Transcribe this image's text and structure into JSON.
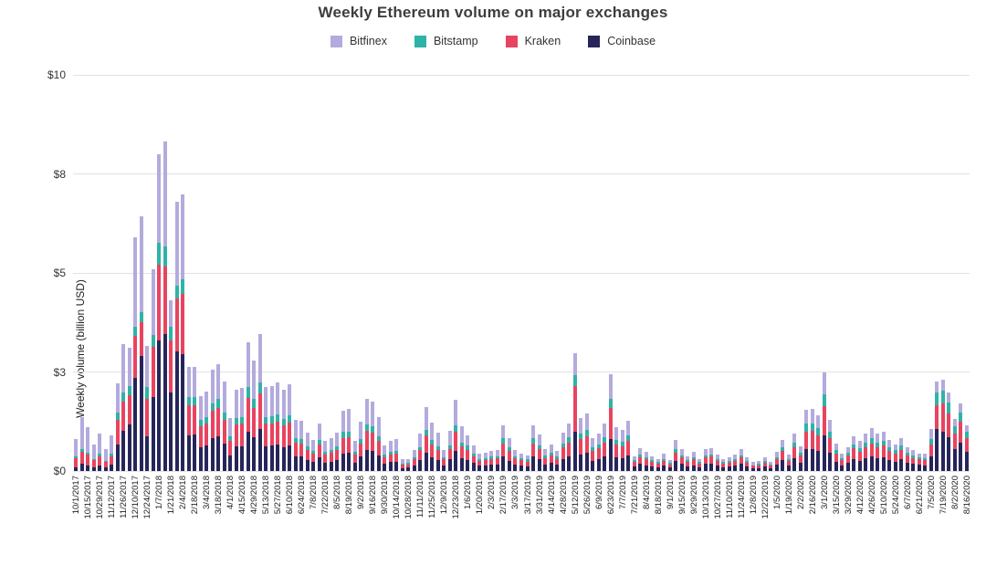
{
  "title": "Weekly Ethereum volume on major exchanges",
  "y_axis": {
    "title": "Weekly volume (billion USD)",
    "ticks": [
      {
        "label": "$10",
        "value": 10
      },
      {
        "label": "$8",
        "value": 7.5
      },
      {
        "label": "$5",
        "value": 5
      },
      {
        "label": "$3",
        "value": 2.5
      },
      {
        "label": "$0",
        "value": 0
      }
    ],
    "max": 10
  },
  "legend": [
    {
      "name": "Bitfinex",
      "color": "#b3abdd"
    },
    {
      "name": "Bitstamp",
      "color": "#2fb3a7"
    },
    {
      "name": "Kraken",
      "color": "#e8445f"
    },
    {
      "name": "Coinbase",
      "color": "#26255a"
    }
  ],
  "chart_data": {
    "type": "bar",
    "stacked": true,
    "title": "Weekly Ethereum volume on major exchanges",
    "xlabel": "",
    "ylabel": "Weekly volume (billion USD)",
    "ylim": [
      0,
      10
    ],
    "grid": true,
    "legend_position": "top",
    "x_tick_every": 2,
    "stack_order_bottom_to_top": [
      "Coinbase",
      "Kraken",
      "Bitstamp",
      "Bitfinex"
    ],
    "categories": [
      "10/1/2017",
      "10/8/2017",
      "10/15/2017",
      "10/22/2017",
      "10/29/2017",
      "11/5/2017",
      "11/12/2017",
      "11/19/2017",
      "11/26/2017",
      "12/3/2017",
      "12/10/2017",
      "12/17/2017",
      "12/24/2017",
      "12/31/2017",
      "1/7/2018",
      "1/14/2018",
      "1/21/2018",
      "1/28/2018",
      "2/4/2018",
      "2/11/2018",
      "2/18/2018",
      "2/25/2018",
      "3/4/2018",
      "3/11/2018",
      "3/18/2018",
      "3/25/2018",
      "4/1/2018",
      "4/8/2018",
      "4/15/2018",
      "4/22/2018",
      "4/29/2018",
      "5/6/2018",
      "5/13/2018",
      "5/20/2018",
      "5/27/2018",
      "6/3/2018",
      "6/10/2018",
      "6/17/2018",
      "6/24/2018",
      "7/1/2018",
      "7/8/2018",
      "7/15/2018",
      "7/22/2018",
      "7/29/2018",
      "8/5/2018",
      "8/12/2018",
      "8/19/2018",
      "8/26/2018",
      "9/2/2018",
      "9/9/2018",
      "9/16/2018",
      "9/23/2018",
      "9/30/2018",
      "10/7/2018",
      "10/14/2018",
      "10/21/2018",
      "10/28/2018",
      "11/4/2018",
      "11/11/2018",
      "11/18/2018",
      "11/25/2018",
      "12/2/2018",
      "12/9/2018",
      "12/16/2018",
      "12/23/2018",
      "12/30/2018",
      "1/6/2019",
      "1/13/2019",
      "1/20/2019",
      "1/27/2019",
      "2/3/2019",
      "2/10/2019",
      "2/17/2019",
      "2/24/2019",
      "3/3/2019",
      "3/10/2019",
      "3/17/2019",
      "3/24/2019",
      "3/31/2019",
      "4/7/2019",
      "4/14/2019",
      "4/21/2019",
      "4/28/2019",
      "5/5/2019",
      "5/12/2019",
      "5/19/2019",
      "5/26/2019",
      "6/2/2019",
      "6/9/2019",
      "6/16/2019",
      "6/23/2019",
      "6/30/2019",
      "7/7/2019",
      "7/14/2019",
      "7/21/2019",
      "7/28/2019",
      "8/4/2019",
      "8/11/2019",
      "8/18/2019",
      "8/25/2019",
      "9/1/2019",
      "9/8/2019",
      "9/15/2019",
      "9/22/2019",
      "9/29/2019",
      "10/6/2019",
      "10/13/2019",
      "10/20/2019",
      "10/27/2019",
      "11/3/2019",
      "11/10/2019",
      "11/17/2019",
      "11/24/2019",
      "12/1/2019",
      "12/8/2019",
      "12/15/2019",
      "12/22/2019",
      "12/29/2019",
      "1/5/2020",
      "1/12/2020",
      "1/19/2020",
      "1/26/2020",
      "2/2/2020",
      "2/9/2020",
      "2/16/2020",
      "2/23/2020",
      "3/1/2020",
      "3/8/2020",
      "3/15/2020",
      "3/22/2020",
      "3/29/2020",
      "4/5/2020",
      "4/12/2020",
      "4/19/2020",
      "4/26/2020",
      "5/3/2020",
      "5/10/2020",
      "5/17/2020",
      "5/24/2020",
      "5/31/2020",
      "6/7/2020",
      "6/14/2020",
      "6/21/2020",
      "6/28/2020",
      "7/5/2020",
      "7/12/2020",
      "7/19/2020",
      "7/26/2020",
      "8/2/2020",
      "8/9/2020",
      "8/16/2020"
    ],
    "series": [
      {
        "name": "Coinbase",
        "color": "#26255a",
        "values": [
          0.1,
          0.18,
          0.15,
          0.1,
          0.14,
          0.09,
          0.16,
          0.68,
          1.02,
          1.18,
          2.35,
          2.9,
          0.87,
          1.87,
          3.3,
          3.45,
          1.98,
          3.02,
          2.94,
          0.9,
          0.92,
          0.6,
          0.64,
          0.83,
          0.88,
          0.7,
          0.4,
          0.62,
          0.63,
          1.0,
          0.85,
          1.05,
          0.63,
          0.64,
          0.66,
          0.61,
          0.65,
          0.38,
          0.37,
          0.28,
          0.23,
          0.35,
          0.21,
          0.24,
          0.28,
          0.44,
          0.45,
          0.21,
          0.36,
          0.53,
          0.5,
          0.39,
          0.18,
          0.22,
          0.23,
          0.08,
          0.09,
          0.15,
          0.27,
          0.46,
          0.35,
          0.28,
          0.15,
          0.29,
          0.51,
          0.32,
          0.28,
          0.2,
          0.13,
          0.14,
          0.16,
          0.17,
          0.36,
          0.26,
          0.17,
          0.14,
          0.12,
          0.36,
          0.29,
          0.17,
          0.21,
          0.16,
          0.31,
          0.38,
          1.0,
          0.42,
          0.46,
          0.26,
          0.3,
          0.38,
          0.8,
          0.35,
          0.33,
          0.4,
          0.12,
          0.18,
          0.15,
          0.12,
          0.1,
          0.13,
          0.09,
          0.25,
          0.18,
          0.12,
          0.15,
          0.1,
          0.18,
          0.19,
          0.13,
          0.1,
          0.11,
          0.13,
          0.18,
          0.11,
          0.07,
          0.08,
          0.11,
          0.08,
          0.16,
          0.27,
          0.14,
          0.33,
          0.21,
          0.55,
          0.56,
          0.5,
          0.9,
          0.46,
          0.24,
          0.15,
          0.21,
          0.31,
          0.26,
          0.33,
          0.38,
          0.33,
          0.35,
          0.28,
          0.24,
          0.29,
          0.21,
          0.18,
          0.16,
          0.15,
          0.37,
          1.05,
          1.0,
          0.85,
          0.55,
          0.72,
          0.48
        ]
      },
      {
        "name": "Kraken",
        "color": "#e8445f",
        "values": [
          0.22,
          0.3,
          0.26,
          0.17,
          0.24,
          0.14,
          0.22,
          0.6,
          0.73,
          0.74,
          1.05,
          0.86,
          0.96,
          1.26,
          1.91,
          1.72,
          1.31,
          1.34,
          1.54,
          0.75,
          0.73,
          0.52,
          0.55,
          0.68,
          0.72,
          0.6,
          0.36,
          0.55,
          0.56,
          0.85,
          0.73,
          0.9,
          0.56,
          0.57,
          0.59,
          0.54,
          0.58,
          0.34,
          0.33,
          0.26,
          0.21,
          0.32,
          0.2,
          0.22,
          0.26,
          0.4,
          0.41,
          0.2,
          0.33,
          0.48,
          0.46,
          0.36,
          0.17,
          0.2,
          0.21,
          0.08,
          0.08,
          0.14,
          0.25,
          0.43,
          0.33,
          0.26,
          0.14,
          0.27,
          0.48,
          0.3,
          0.26,
          0.18,
          0.12,
          0.13,
          0.15,
          0.15,
          0.33,
          0.24,
          0.15,
          0.13,
          0.12,
          0.33,
          0.26,
          0.16,
          0.19,
          0.15,
          0.28,
          0.34,
          1.15,
          0.38,
          0.42,
          0.24,
          0.27,
          0.34,
          0.78,
          0.31,
          0.3,
          0.36,
          0.11,
          0.17,
          0.14,
          0.11,
          0.09,
          0.12,
          0.08,
          0.22,
          0.16,
          0.11,
          0.14,
          0.09,
          0.16,
          0.17,
          0.12,
          0.09,
          0.1,
          0.12,
          0.16,
          0.1,
          0.06,
          0.07,
          0.1,
          0.07,
          0.14,
          0.23,
          0.12,
          0.28,
          0.18,
          0.45,
          0.46,
          0.41,
          0.73,
          0.38,
          0.2,
          0.13,
          0.18,
          0.26,
          0.22,
          0.28,
          0.32,
          0.28,
          0.29,
          0.23,
          0.2,
          0.25,
          0.18,
          0.15,
          0.13,
          0.13,
          0.31,
          0.62,
          0.7,
          0.6,
          0.4,
          0.52,
          0.35
        ]
      },
      {
        "name": "Bitstamp",
        "color": "#2fb3a7",
        "values": [
          0.05,
          0.07,
          0.06,
          0.04,
          0.05,
          0.03,
          0.05,
          0.2,
          0.23,
          0.22,
          0.23,
          0.24,
          0.29,
          0.31,
          0.54,
          0.5,
          0.34,
          0.32,
          0.35,
          0.22,
          0.22,
          0.16,
          0.17,
          0.2,
          0.21,
          0.18,
          0.11,
          0.17,
          0.17,
          0.26,
          0.23,
          0.28,
          0.17,
          0.17,
          0.18,
          0.17,
          0.18,
          0.11,
          0.11,
          0.09,
          0.07,
          0.11,
          0.07,
          0.07,
          0.09,
          0.14,
          0.14,
          0.07,
          0.11,
          0.16,
          0.16,
          0.12,
          0.06,
          0.07,
          0.07,
          0.03,
          0.03,
          0.05,
          0.09,
          0.15,
          0.11,
          0.09,
          0.05,
          0.09,
          0.16,
          0.1,
          0.1,
          0.07,
          0.05,
          0.05,
          0.06,
          0.06,
          0.13,
          0.09,
          0.06,
          0.05,
          0.05,
          0.13,
          0.1,
          0.06,
          0.07,
          0.06,
          0.11,
          0.13,
          0.28,
          0.15,
          0.16,
          0.09,
          0.1,
          0.13,
          0.24,
          0.12,
          0.11,
          0.14,
          0.04,
          0.06,
          0.05,
          0.04,
          0.03,
          0.05,
          0.03,
          0.08,
          0.06,
          0.04,
          0.05,
          0.03,
          0.06,
          0.06,
          0.04,
          0.03,
          0.04,
          0.05,
          0.06,
          0.04,
          0.02,
          0.03,
          0.04,
          0.02,
          0.05,
          0.09,
          0.05,
          0.11,
          0.08,
          0.19,
          0.19,
          0.17,
          0.3,
          0.16,
          0.09,
          0.05,
          0.07,
          0.11,
          0.09,
          0.11,
          0.13,
          0.11,
          0.12,
          0.1,
          0.08,
          0.1,
          0.08,
          0.07,
          0.06,
          0.05,
          0.13,
          0.32,
          0.32,
          0.28,
          0.18,
          0.23,
          0.16
        ]
      },
      {
        "name": "Bitfinex",
        "color": "#b3abdd",
        "values": [
          0.43,
          0.8,
          0.63,
          0.37,
          0.52,
          0.29,
          0.47,
          0.73,
          1.22,
          0.96,
          2.28,
          2.44,
          1.03,
          1.65,
          2.24,
          2.65,
          0.67,
          2.12,
          2.16,
          0.75,
          0.76,
          0.62,
          0.64,
          0.84,
          0.89,
          0.77,
          0.46,
          0.72,
          0.74,
          1.14,
          0.98,
          1.23,
          0.76,
          0.77,
          0.8,
          0.74,
          0.79,
          0.46,
          0.46,
          0.35,
          0.28,
          0.43,
          0.27,
          0.3,
          0.35,
          0.54,
          0.56,
          0.27,
          0.45,
          0.66,
          0.63,
          0.5,
          0.23,
          0.28,
          0.3,
          0.1,
          0.11,
          0.2,
          0.33,
          0.57,
          0.44,
          0.34,
          0.2,
          0.37,
          0.64,
          0.4,
          0.27,
          0.19,
          0.13,
          0.14,
          0.14,
          0.16,
          0.33,
          0.24,
          0.16,
          0.13,
          0.11,
          0.33,
          0.27,
          0.17,
          0.19,
          0.14,
          0.28,
          0.35,
          0.55,
          0.38,
          0.42,
          0.25,
          0.27,
          0.35,
          0.62,
          0.32,
          0.3,
          0.37,
          0.11,
          0.17,
          0.14,
          0.11,
          0.09,
          0.13,
          0.08,
          0.23,
          0.16,
          0.1,
          0.14,
          0.09,
          0.16,
          0.16,
          0.12,
          0.09,
          0.1,
          0.12,
          0.15,
          0.1,
          0.07,
          0.07,
          0.1,
          0.07,
          0.13,
          0.19,
          0.11,
          0.22,
          0.15,
          0.35,
          0.36,
          0.33,
          0.55,
          0.29,
          0.16,
          0.1,
          0.14,
          0.19,
          0.18,
          0.22,
          0.25,
          0.22,
          0.22,
          0.18,
          0.16,
          0.19,
          0.14,
          0.12,
          0.1,
          0.1,
          0.25,
          0.28,
          0.28,
          0.25,
          0.18,
          0.24,
          0.16
        ]
      }
    ]
  }
}
